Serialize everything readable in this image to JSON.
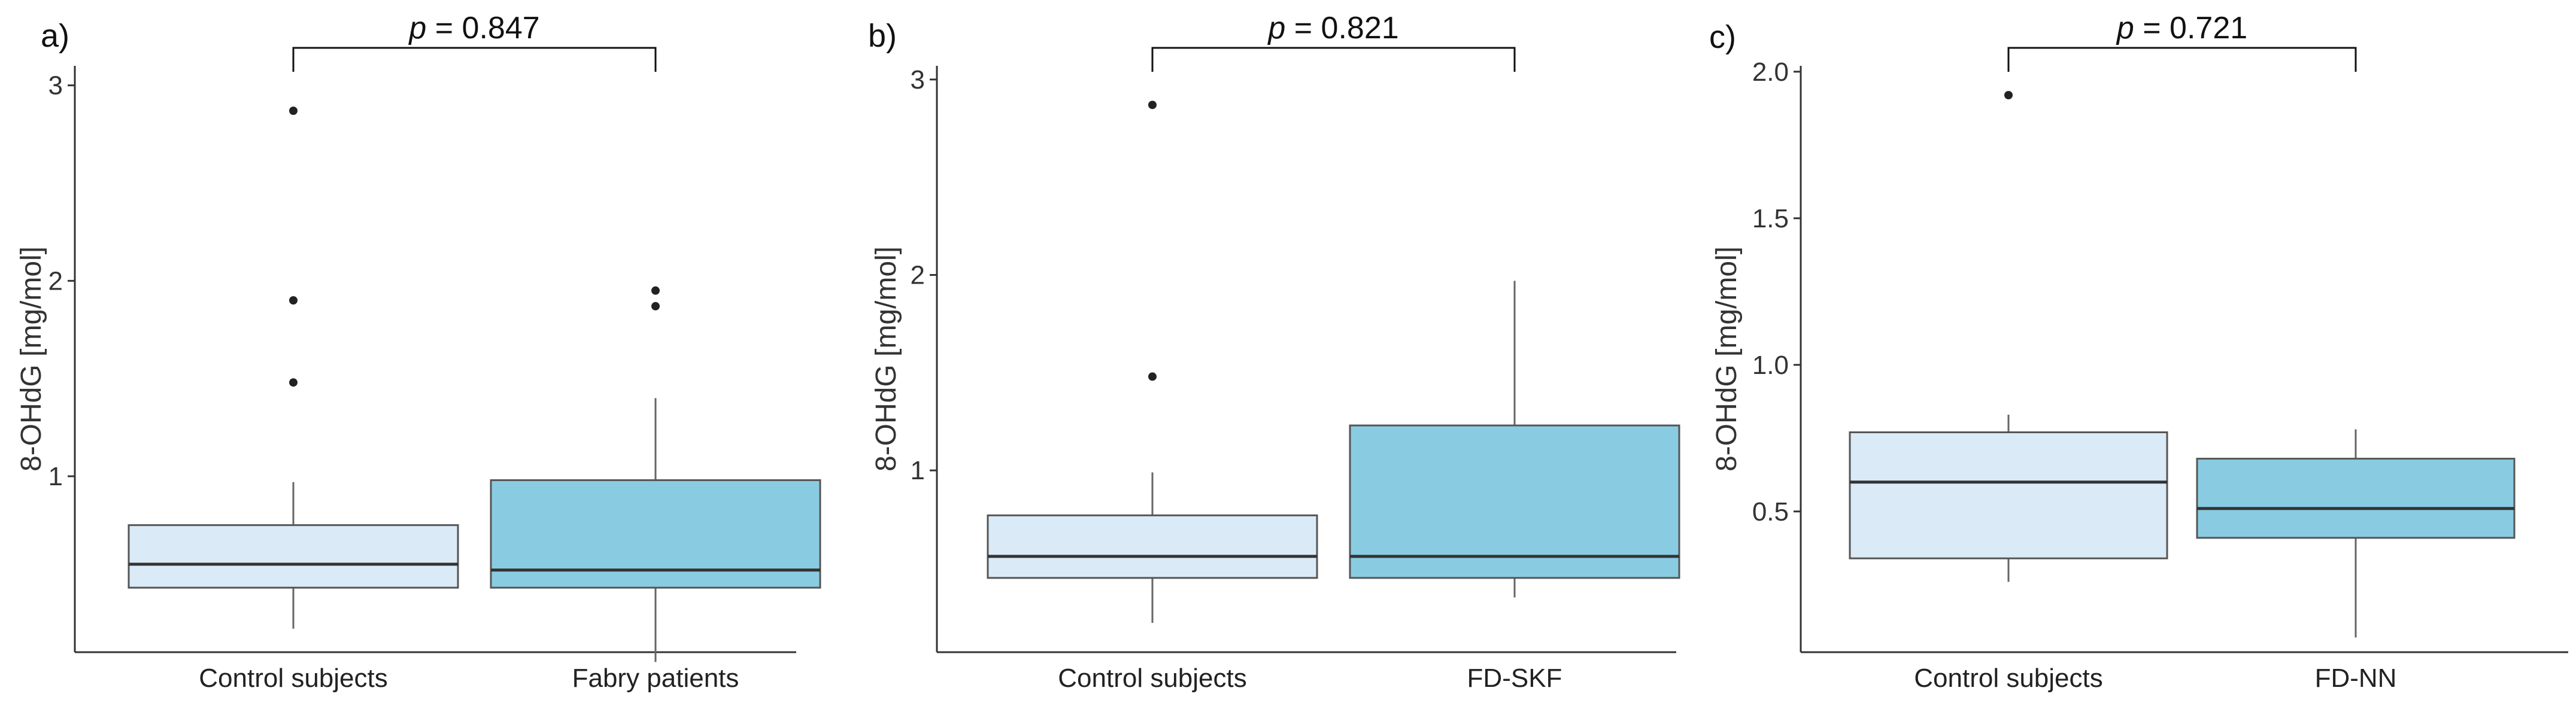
{
  "chart_data": [
    {
      "type": "box",
      "panel_label": "a)",
      "ylabel": "8-OHdG [mg/mol]",
      "ylim": [
        0.1,
        3.1
      ],
      "y_ticks": [
        1,
        2,
        3
      ],
      "y_tick_labels": [
        "1",
        "2",
        "3"
      ],
      "categories": [
        "Control subjects",
        "Fabry patients"
      ],
      "boxes": [
        {
          "min": 0.22,
          "q1": 0.43,
          "median": 0.55,
          "q3": 0.75,
          "max": 0.97,
          "outliers": [
            1.48,
            1.9,
            2.87
          ],
          "color": "#daeaf7"
        },
        {
          "min": 0.05,
          "q1": 0.43,
          "median": 0.52,
          "q3": 0.98,
          "max": 1.4,
          "outliers": [
            1.87,
            1.95
          ],
          "color": "#89cce2"
        }
      ],
      "comparison": {
        "prefix": "p",
        "text": " = 0.847"
      }
    },
    {
      "type": "box",
      "panel_label": "b)",
      "ylabel": "8-OHdG [mg/mol]",
      "ylim": [
        0.07,
        3.07
      ],
      "y_ticks": [
        1,
        2,
        3
      ],
      "y_tick_labels": [
        "1",
        "2",
        "3"
      ],
      "categories": [
        "Control subjects",
        "FD-SKF"
      ],
      "boxes": [
        {
          "min": 0.22,
          "q1": 0.45,
          "median": 0.56,
          "q3": 0.77,
          "max": 0.99,
          "outliers": [
            1.48,
            2.87
          ],
          "color": "#daeaf7"
        },
        {
          "min": 0.35,
          "q1": 0.45,
          "median": 0.56,
          "q3": 1.23,
          "max": 1.97,
          "outliers": [],
          "color": "#89cce2"
        }
      ],
      "comparison": {
        "prefix": "p",
        "text": " = 0.821"
      }
    },
    {
      "type": "box",
      "panel_label": "c)",
      "ylabel": "8-OHdG [mg/mol]",
      "ylim": [
        0.02,
        2.02
      ],
      "y_ticks": [
        0.5,
        1.0,
        1.5,
        2.0
      ],
      "y_tick_labels": [
        "0.5",
        "1.0",
        "1.5",
        "2.0"
      ],
      "categories": [
        "Control subjects",
        "FD-NN"
      ],
      "boxes": [
        {
          "min": 0.26,
          "q1": 0.34,
          "median": 0.6,
          "q3": 0.77,
          "max": 0.83,
          "outliers": [
            1.92
          ],
          "color": "#daeaf7"
        },
        {
          "min": 0.07,
          "q1": 0.41,
          "median": 0.51,
          "q3": 0.68,
          "max": 0.78,
          "outliers": [],
          "color": "#89cce2"
        }
      ],
      "comparison": {
        "prefix": "p",
        "text": " = 0.721"
      }
    }
  ]
}
